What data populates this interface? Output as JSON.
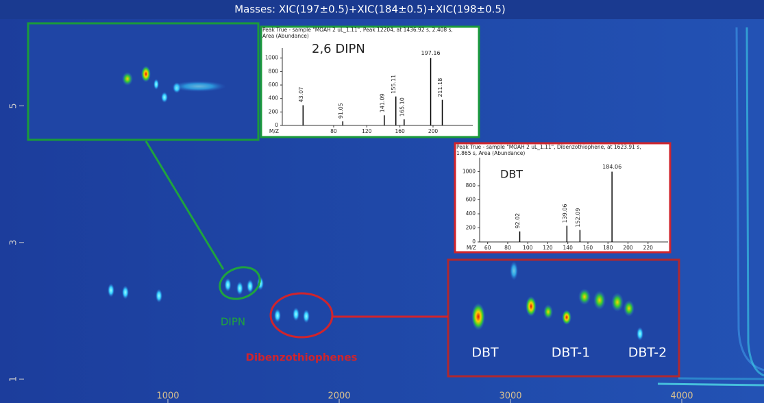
{
  "chart_data": [
    {
      "type": "contour",
      "title": "Masses:  XIC(197±0.5)+XIC(184±0.5)+XIC(198±0.5)",
      "xlim": [
        160,
        4480
      ],
      "ylim": [
        0.65,
        6.27
      ],
      "xticks": [
        1000,
        2000,
        3000,
        4000
      ],
      "yticks": [
        1,
        3,
        5
      ],
      "x": [
        668,
        752,
        948,
        1350,
        1420,
        1480,
        1540,
        1640,
        1748,
        1808
      ],
      "values": [
        2.3,
        2.27,
        2.22,
        2.38,
        2.33,
        2.36,
        2.4,
        1.93,
        1.95,
        1.92
      ],
      "annotations": [
        "DIPN",
        "Dibenzothiophenes"
      ]
    },
    {
      "type": "spectrum",
      "header": "Peak True - sample \"MOAH 2 uL_1.11\", Peak 12204, at 1436.92 s, 2.408 s, Area (Abundance)",
      "label": "2,6 DIPN",
      "x_axis_label": "M/Z",
      "color": "#000000",
      "x": [
        43.07,
        91.05,
        141.09,
        155.11,
        165.1,
        197.16,
        211.18
      ],
      "x_labels": [
        "43.07",
        "91.05",
        "141.09",
        "155.11",
        "165.10",
        "197.16",
        "211.18"
      ],
      "values": [
        300,
        60,
        150,
        430,
        90,
        1000,
        380
      ],
      "xlim": [
        18,
        248
      ],
      "ylim": [
        0,
        1150
      ],
      "xticks": [
        80,
        120,
        160,
        200
      ],
      "yticks": [
        0,
        200,
        400,
        600,
        800,
        1000
      ]
    },
    {
      "type": "spectrum",
      "header": "Peak True - sample \"MOAH 2 uL_1.11\", Dibenzothiophene, at 1623.91 s, 1.865 s, Area (Abundance)",
      "label": "DBT",
      "x_axis_label": "M/Z",
      "color": "#000000",
      "x": [
        92.02,
        139.06,
        152.09,
        184.06
      ],
      "x_labels": [
        "92.02",
        "139.06",
        "152.09",
        "184.06"
      ],
      "values": [
        150,
        230,
        170,
        1000
      ],
      "xlim": [
        52,
        240
      ],
      "ylim": [
        0,
        1200
      ],
      "xticks": [
        60,
        80,
        100,
        120,
        140,
        160,
        180,
        200,
        220
      ],
      "yticks": [
        0,
        200,
        400,
        600,
        800,
        1000
      ]
    }
  ],
  "zoom_labels": [
    "DBT",
    "DBT-1",
    "DBT-2"
  ]
}
